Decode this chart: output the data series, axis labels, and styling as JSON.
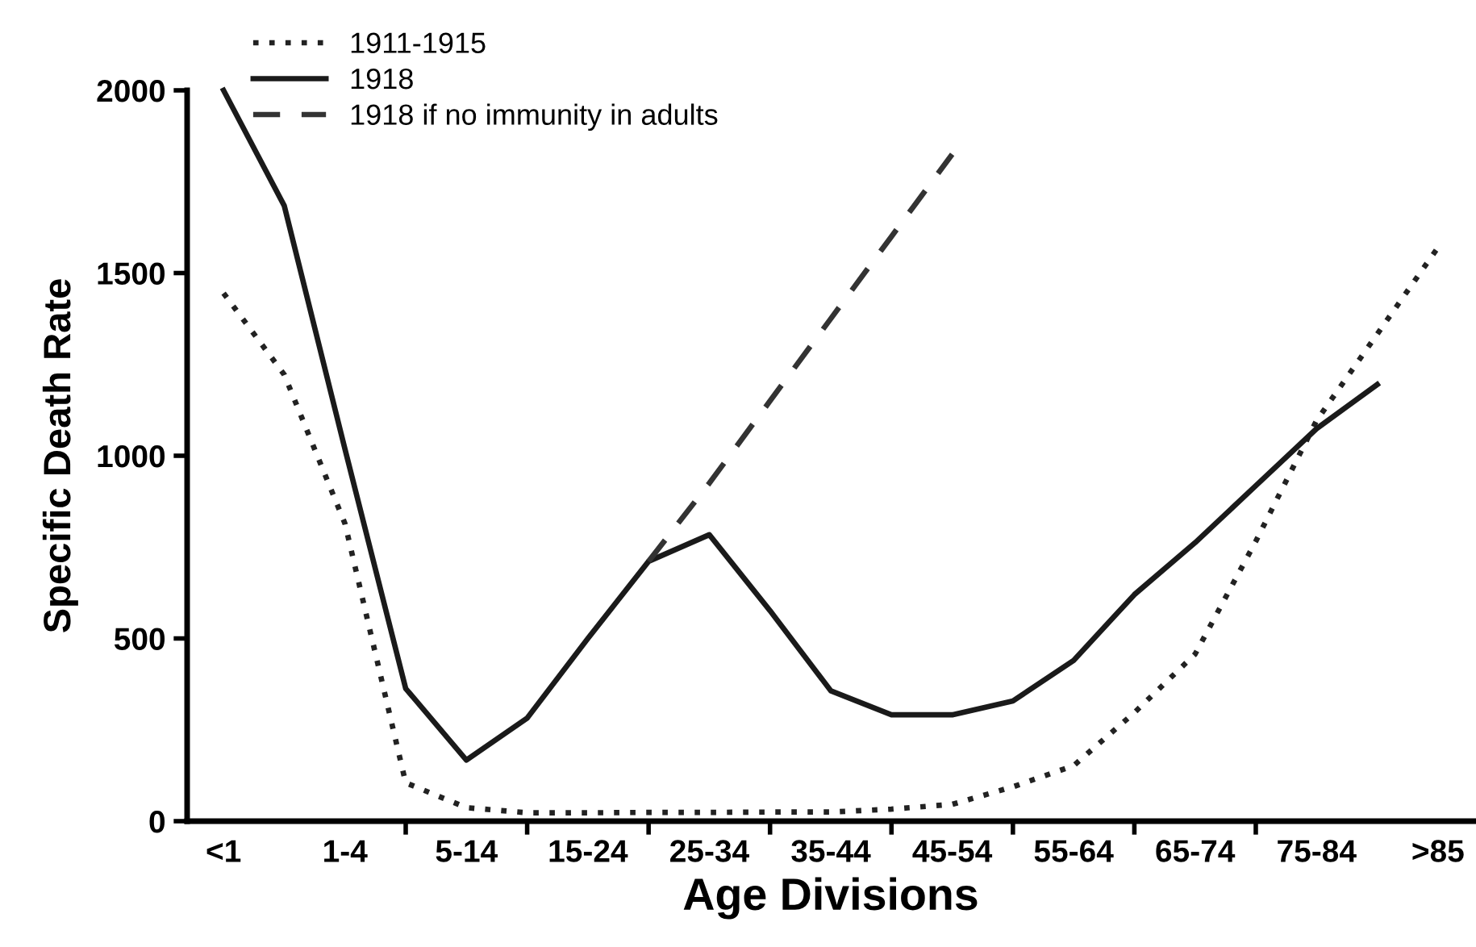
{
  "chart_data": {
    "type": "line",
    "xlabel": "Age Divisions",
    "ylabel": "Specific Death Rate",
    "categories": [
      "<1",
      null,
      "1-4",
      null,
      "5-14",
      null,
      "15-24",
      null,
      "25-34",
      null,
      "35-44",
      null,
      "45-54",
      null,
      "55-64",
      null,
      "65-74",
      null,
      "75-84",
      null,
      ">85"
    ],
    "ylim": [
      0,
      2000
    ],
    "yticks": [
      0,
      500,
      1000,
      1500,
      2000
    ],
    "grid": false,
    "legend": "top left",
    "marker": "none",
    "series": [
      {
        "name": "1911-1915",
        "color": "#222222",
        "line_style": "dotted",
        "values": [
          1445,
          1222,
          814,
          105,
          37,
          23,
          23,
          24,
          24,
          25,
          25,
          33,
          46,
          94,
          152,
          297,
          457,
          766,
          1096,
          1333,
          1570
        ]
      },
      {
        "name": "1918",
        "color": "#1a1a1a",
        "line_style": "solid",
        "values": [
          2000,
          1684,
          1018,
          363,
          167,
          282,
          500,
          711,
          784,
          576,
          357,
          291,
          291,
          329,
          440,
          620,
          762,
          918,
          1074,
          1195,
          null
        ]
      },
      {
        "name": "1918 if no immunity in adults",
        "color": "#333333",
        "line_style": "dashed",
        "values": [
          null,
          null,
          null,
          null,
          null,
          null,
          null,
          711,
          925,
          1150,
          1375,
          1600,
          1825,
          null,
          null,
          null,
          null,
          null,
          null,
          null,
          null
        ]
      }
    ]
  }
}
